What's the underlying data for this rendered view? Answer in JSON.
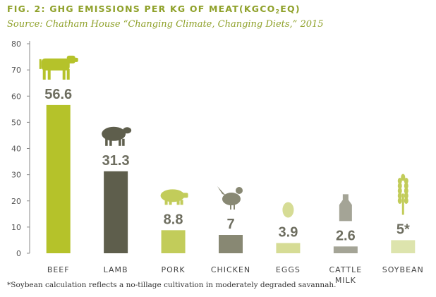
{
  "title_main": "FIG. 2: GHG EMISSIONS PER KG OF MEAT(KGCO",
  "title_sub": "2",
  "title_end": "EQ)",
  "subtitle": "Source: Chatham House “Changing Climate, Changing Diets,” 2015",
  "footnote": "*Soybean calculation reflects a no-tillage cultivation in moderately degraded savannah.",
  "chart_data": {
    "type": "bar",
    "title": "FIG. 2: GHG EMISSIONS PER KG OF MEAT(KGCO2EQ)",
    "subtitle": "Source: Chatham House “Changing Climate, Changing Diets,” 2015",
    "categories": [
      "BEEF",
      "LAMB",
      "PORK",
      "CHICKEN",
      "EGGS",
      "CATTLE MILK",
      "SOYBEAN"
    ],
    "values": [
      56.6,
      31.3,
      8.8,
      7,
      3.9,
      2.6,
      5
    ],
    "value_labels": [
      "56.6",
      "31.3",
      "8.8",
      "7",
      "3.9",
      "2.6",
      "5*"
    ],
    "colors": [
      "#b5c22a",
      "#5e5e4c",
      "#c2cc5a",
      "#888873",
      "#d6dc95",
      "#a4a496",
      "#dde4ad"
    ],
    "label_colors": [
      "#6e6e60",
      "#6e6e60",
      "#6e6e60",
      "#6e6e60",
      "#6e6e60",
      "#6e6e60",
      "#6e6e60"
    ],
    "icons": [
      "cow-icon",
      "sheep-icon",
      "pig-icon",
      "chicken-icon",
      "egg-icon",
      "milk-bottle-icon",
      "wheat-icon"
    ],
    "icon_colors": [
      "#b5c22a",
      "#5e5e4c",
      "#c2cc5a",
      "#888873",
      "#d6dc95",
      "#a4a496",
      "#c2cc5a"
    ],
    "yticks": [
      0,
      10,
      20,
      30,
      40,
      50,
      60,
      70,
      80
    ],
    "ylim": [
      0,
      80
    ],
    "xlabel": "",
    "ylabel": "",
    "grid": false
  }
}
